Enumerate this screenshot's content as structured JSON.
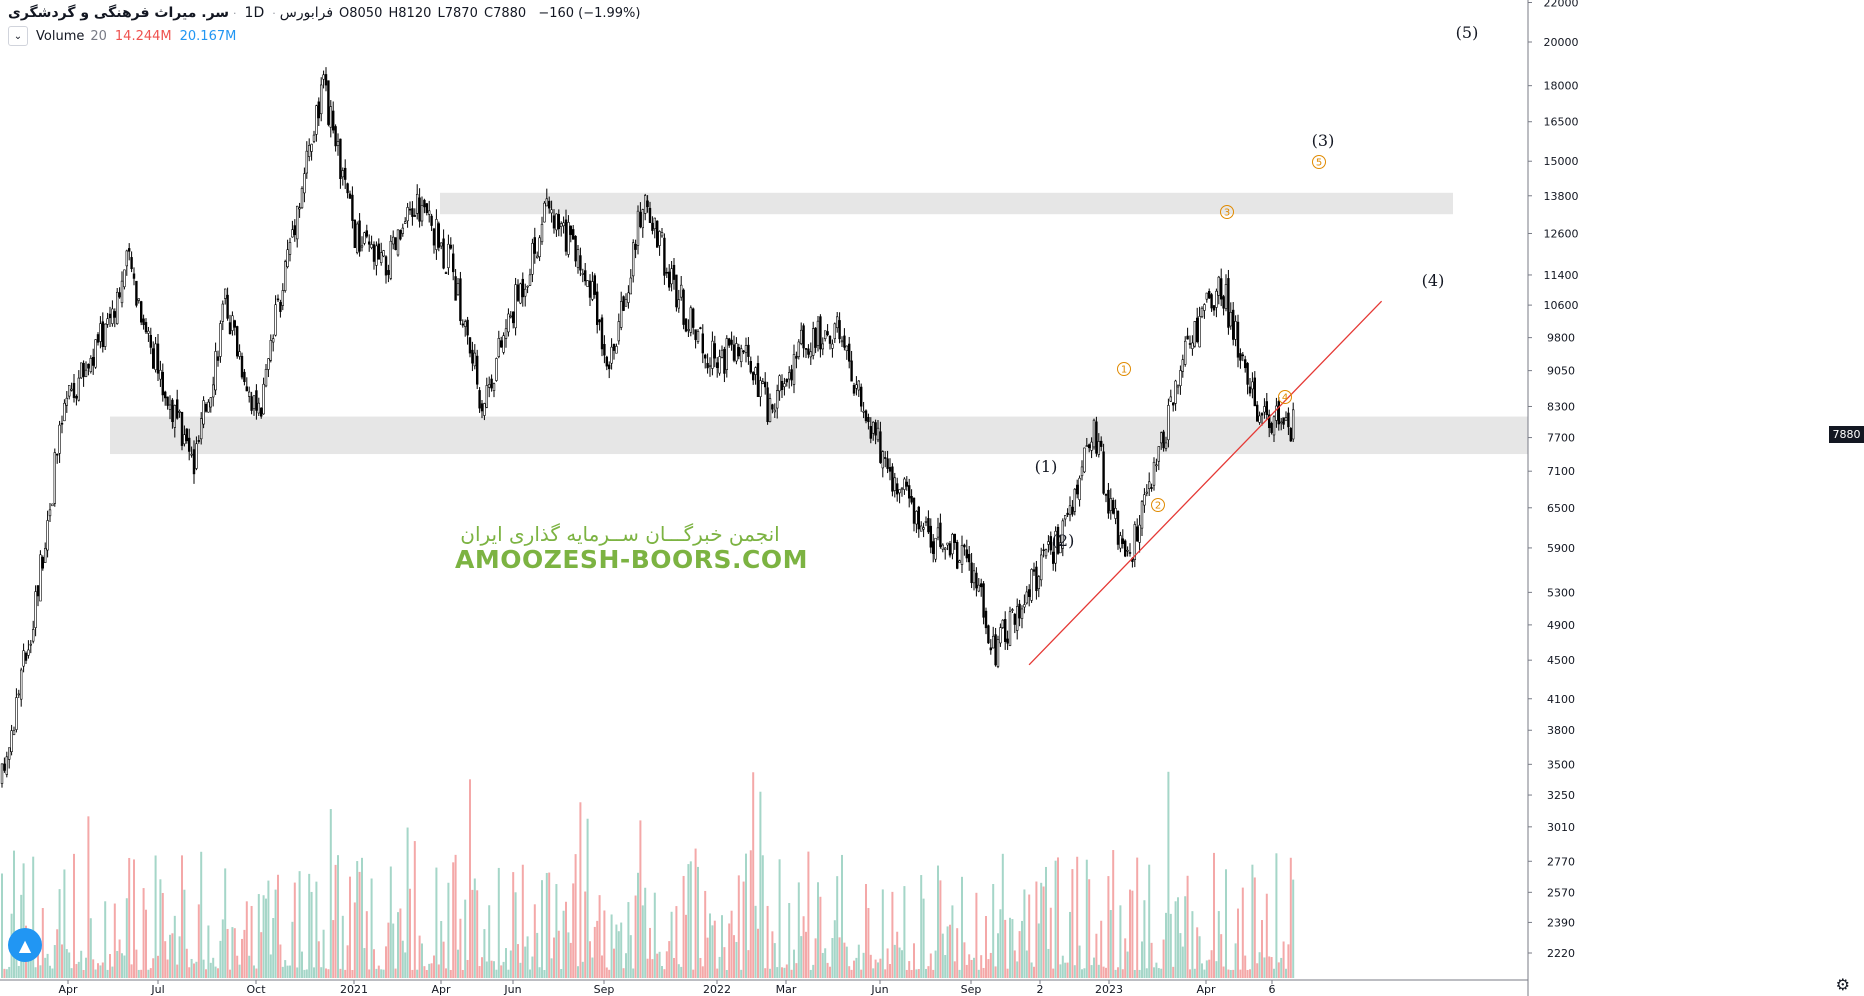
{
  "header": {
    "symbol": "سر. میراث فرهنگی و گردشگری",
    "timeframe": "1D",
    "exchange": "فرابورس",
    "ohlc": {
      "o_label": "O",
      "o": "8050",
      "h_label": "H",
      "h": "8120",
      "l_label": "L",
      "l": "7870",
      "c_label": "C",
      "c": "7880",
      "change": "−160 (−1.99%)"
    }
  },
  "volume_indicator": {
    "name": "Volume",
    "length": "20",
    "value1": "14.244M",
    "value2": "20.167M",
    "collapse_icon": "chevron-down-icon"
  },
  "watermark": {
    "line1": "انجمن خبرگـــان ســرمایه گذاری ایران",
    "line2": "AMOOZESH-BOORS.COM"
  },
  "price_tag": "7880",
  "colors": {
    "up": "#26a69a",
    "down": "#ef5350",
    "vol_up": "#a5d6c8",
    "vol_down": "#f4a8a8",
    "trendline": "#e53935",
    "wave_label": "#e08a00",
    "zone": "#e6e6e6",
    "candle": "#000000"
  },
  "chart_data": {
    "type": "candlestick",
    "scale": "log",
    "x_ticks": [
      "Apr",
      "Jul",
      "Oct",
      "2021",
      "Apr",
      "Jun",
      "Sep",
      "2022",
      "Mar",
      "Jun",
      "Sep",
      "2",
      "2023",
      "Apr",
      "6"
    ],
    "y_ticks": [
      22000,
      20000,
      18000,
      16500,
      15000,
      13800,
      12600,
      11400,
      10600,
      9800,
      9050,
      8300,
      7700,
      7100,
      6500,
      5900,
      5300,
      4900,
      4500,
      4100,
      3800,
      3500,
      3250,
      3010,
      2770,
      2570,
      2390,
      2220
    ],
    "price_path": [
      {
        "date": "2020-03",
        "price": 3300
      },
      {
        "date": "2020-04",
        "price": 5000
      },
      {
        "date": "2020-05",
        "price": 8300
      },
      {
        "date": "2020-06",
        "price": 9600
      },
      {
        "date": "2020-07",
        "price": 11800
      },
      {
        "date": "2020-08",
        "price": 8800
      },
      {
        "date": "2020-09",
        "price": 7200
      },
      {
        "date": "2020-10",
        "price": 10700
      },
      {
        "date": "2020-11",
        "price": 8000
      },
      {
        "date": "2020-12",
        "price": 12500
      },
      {
        "date": "2021-01",
        "price": 17900
      },
      {
        "date": "2021-02",
        "price": 12500
      },
      {
        "date": "2021-03",
        "price": 11600
      },
      {
        "date": "2021-04",
        "price": 13600
      },
      {
        "date": "2021-05",
        "price": 11800
      },
      {
        "date": "2021-06",
        "price": 8400
      },
      {
        "date": "2021-07",
        "price": 10600
      },
      {
        "date": "2021-08",
        "price": 13200
      },
      {
        "date": "2021-09",
        "price": 12000
      },
      {
        "date": "2021-10",
        "price": 9200
      },
      {
        "date": "2021-11",
        "price": 13800
      },
      {
        "date": "2021-12",
        "price": 11000
      },
      {
        "date": "2022-01",
        "price": 9300
      },
      {
        "date": "2022-02",
        "price": 9500
      },
      {
        "date": "2022-03",
        "price": 8200
      },
      {
        "date": "2022-04",
        "price": 9700
      },
      {
        "date": "2022-05",
        "price": 10100
      },
      {
        "date": "2022-06",
        "price": 8000
      },
      {
        "date": "2022-07",
        "price": 6800
      },
      {
        "date": "2022-08",
        "price": 6100
      },
      {
        "date": "2022-09",
        "price": 5800
      },
      {
        "date": "2022-10",
        "price": 4600
      },
      {
        "date": "2022-11",
        "price": 5400
      },
      {
        "date": "2022-12",
        "price": 6100
      },
      {
        "date": "2023-01",
        "price": 7800
      },
      {
        "date": "2023-02",
        "price": 5600
      },
      {
        "date": "2023-03",
        "price": 7100
      },
      {
        "date": "2023-04",
        "price": 9600
      },
      {
        "date": "2023-05",
        "price": 11300
      },
      {
        "date": "2023-06",
        "price": 8400
      },
      {
        "date": "2023-07",
        "price": 7880
      }
    ],
    "zones": [
      {
        "label": "upper zone",
        "low": 13200,
        "high": 13900
      },
      {
        "label": "lower zone",
        "low": 7400,
        "high": 8100
      }
    ],
    "trendline": {
      "start": {
        "date": "2022-11",
        "price": 4450
      },
      "end": {
        "date": "2023-10",
        "price": 10700
      }
    },
    "wave_labels": [
      {
        "text": "(1)",
        "style": "plain"
      },
      {
        "text": "(2)",
        "style": "plain"
      },
      {
        "text": "(3)",
        "style": "plain"
      },
      {
        "text": "(4)",
        "style": "plain"
      },
      {
        "text": "(5)",
        "style": "plain"
      },
      {
        "text": "1",
        "style": "circled"
      },
      {
        "text": "2",
        "style": "circled"
      },
      {
        "text": "3",
        "style": "circled"
      },
      {
        "text": "4",
        "style": "circled"
      },
      {
        "text": "5",
        "style": "circled"
      }
    ]
  }
}
